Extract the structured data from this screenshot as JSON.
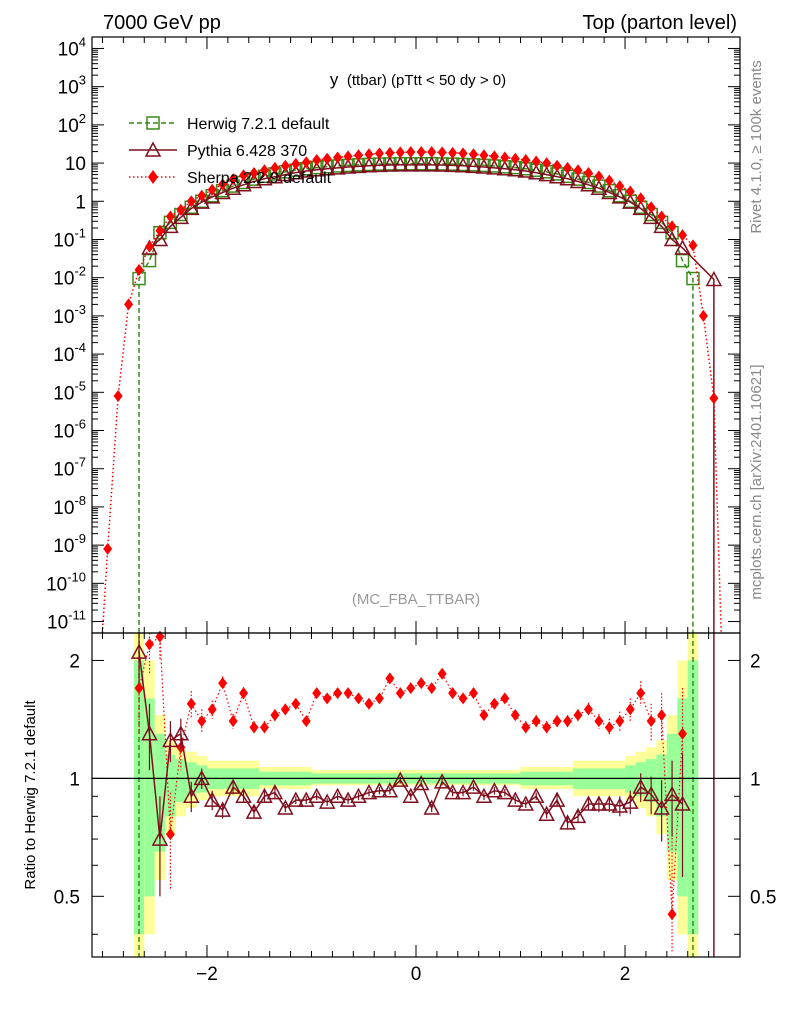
{
  "header": {
    "left": "7000 GeV pp",
    "right": "Top (parton level)"
  },
  "side_text": {
    "rivet": "Rivet 4.1.0, ≥ 100k events",
    "mcplots": "mcplots.cern.ch [arXiv:2401.10621]"
  },
  "colors": {
    "herwig": "#3a8a1a",
    "pythia": "#7f0f1e",
    "sherpa": "#ff0000",
    "band_inner": "#99ff99",
    "band_outer": "#ffff99"
  },
  "chart_data": [
    {
      "type": "line",
      "panel": "main",
      "title": "y",
      "title_suffix": "(ttbar) (pTtt < 50 dy > 0)",
      "analysis_label": "(MC_FBA_TTBAR)",
      "yscale": "log",
      "xlim": [
        -3.1,
        3.1
      ],
      "ylim_exponent": [
        -11.3,
        4.3
      ],
      "ytick_labels": [
        "10^4",
        "10^3",
        "10^2",
        "10",
        "1",
        "10^-1",
        "10^-2",
        "10^-3",
        "10^-4",
        "10^-5",
        "10^-6",
        "10^-7",
        "10^-8",
        "10^-9",
        "10^-10",
        "10^-11"
      ],
      "legend": {
        "placement": "top-left",
        "entries": [
          "Herwig 7.2.1 default",
          "Pythia 6.428 370",
          "Sherpa 2.2.9 default"
        ]
      },
      "series": [
        {
          "name": "Herwig 7.2.1 default",
          "marker": "open-square",
          "x": [
            -2.65,
            -2.55,
            -2.45,
            -2.35,
            -2.25,
            -2.15,
            -2.05,
            -1.95,
            -1.85,
            -1.75,
            -1.65,
            -1.55,
            -1.45,
            -1.35,
            -1.25,
            -1.15,
            -1.05,
            -0.95,
            -0.85,
            -0.75,
            -0.65,
            -0.55,
            -0.45,
            -0.35,
            -0.25,
            -0.15,
            -0.05,
            0.05,
            0.15,
            0.25,
            0.35,
            0.45,
            0.55,
            0.65,
            0.75,
            0.85,
            0.95,
            1.05,
            1.15,
            1.25,
            1.35,
            1.45,
            1.55,
            1.65,
            1.75,
            1.85,
            1.95,
            2.05,
            2.15,
            2.25,
            2.35,
            2.45,
            2.55,
            2.65
          ],
          "y": [
            0.0095,
            0.028,
            0.15,
            0.28,
            0.45,
            0.7,
            1.0,
            1.4,
            1.9,
            2.5,
            3.1,
            3.8,
            4.5,
            5.2,
            5.9,
            6.5,
            7.1,
            7.6,
            8.0,
            8.4,
            8.7,
            9.0,
            9.2,
            9.4,
            9.5,
            9.6,
            9.6,
            9.6,
            9.6,
            9.5,
            9.4,
            9.2,
            9.0,
            8.7,
            8.4,
            8.0,
            7.6,
            7.1,
            6.5,
            5.9,
            5.2,
            4.5,
            3.8,
            3.1,
            2.5,
            1.9,
            1.4,
            1.0,
            0.7,
            0.45,
            0.28,
            0.15,
            0.028,
            0.0095
          ]
        },
        {
          "name": "Pythia 6.428 370",
          "marker": "open-triangle",
          "x": [
            -2.55,
            -2.45,
            -2.35,
            -2.25,
            -2.15,
            -2.05,
            -1.95,
            -1.85,
            -1.75,
            -1.65,
            -1.55,
            -1.45,
            -1.35,
            -1.25,
            -1.15,
            -1.05,
            -0.95,
            -0.85,
            -0.75,
            -0.65,
            -0.55,
            -0.45,
            -0.35,
            -0.25,
            -0.15,
            -0.05,
            0.05,
            0.15,
            0.25,
            0.35,
            0.45,
            0.55,
            0.65,
            0.75,
            0.85,
            0.95,
            1.05,
            1.15,
            1.25,
            1.35,
            1.45,
            1.55,
            1.65,
            1.75,
            1.85,
            1.95,
            2.05,
            2.15,
            2.25,
            2.35,
            2.45,
            2.55,
            2.85
          ],
          "y": [
            0.06,
            0.1,
            0.22,
            0.38,
            0.65,
            0.95,
            1.3,
            1.7,
            2.2,
            2.7,
            3.3,
            3.9,
            4.4,
            5.0,
            5.6,
            6.2,
            6.7,
            7.1,
            7.5,
            7.9,
            8.2,
            8.5,
            8.7,
            8.9,
            9.0,
            9.0,
            9.0,
            9.0,
            8.9,
            8.7,
            8.5,
            8.2,
            7.9,
            7.5,
            7.1,
            6.7,
            6.2,
            5.6,
            5.0,
            4.4,
            3.9,
            3.3,
            2.7,
            2.2,
            1.7,
            1.3,
            0.95,
            0.65,
            0.38,
            0.22,
            0.1,
            0.06,
            0.009
          ]
        },
        {
          "name": "Sherpa 2.2.9 default",
          "marker": "filled-diamond",
          "x": [
            -2.95,
            -2.85,
            -2.75,
            -2.65,
            -2.55,
            -2.45,
            -2.35,
            -2.25,
            -2.15,
            -2.05,
            -1.95,
            -1.85,
            -1.75,
            -1.65,
            -1.55,
            -1.45,
            -1.35,
            -1.25,
            -1.15,
            -1.05,
            -0.95,
            -0.85,
            -0.75,
            -0.65,
            -0.55,
            -0.45,
            -0.35,
            -0.25,
            -0.15,
            -0.05,
            0.05,
            0.15,
            0.25,
            0.35,
            0.45,
            0.55,
            0.65,
            0.75,
            0.85,
            0.95,
            1.05,
            1.15,
            1.25,
            1.35,
            1.45,
            1.55,
            1.65,
            1.75,
            1.85,
            1.95,
            2.05,
            2.15,
            2.25,
            2.35,
            2.45,
            2.55,
            2.65,
            2.75,
            2.85
          ],
          "y": [
            8e-10,
            8e-06,
            0.002,
            0.016,
            0.065,
            0.17,
            0.4,
            0.6,
            1.0,
            1.4,
            2.0,
            2.8,
            3.8,
            4.8,
            5.5,
            6.5,
            7.5,
            8.5,
            9.5,
            10.5,
            12,
            13,
            14,
            15,
            16,
            17,
            18,
            18.5,
            19,
            19.5,
            19.5,
            19.5,
            19,
            18.5,
            18,
            17,
            16,
            15,
            14,
            13,
            12,
            11,
            10,
            8.5,
            7.5,
            6.5,
            5.5,
            4.5,
            3.5,
            2.5,
            1.8,
            1.2,
            0.7,
            0.4,
            0.22,
            0.13,
            0.07,
            0.001,
            7e-06
          ]
        }
      ]
    },
    {
      "type": "line",
      "panel": "ratio",
      "ylabel": "Ratio to Herwig 7.2.1 default",
      "xlim": [
        -3.1,
        3.1
      ],
      "ylim": [
        0.35,
        2.35
      ],
      "yscale": "log",
      "ytick_labels": [
        "0.5",
        "1",
        "2"
      ],
      "xtick_labels": [
        "−2",
        "0",
        "2"
      ],
      "reference_line": 1,
      "band": {
        "x_edges": [
          -2.7,
          -2.6,
          -2.5,
          -2.4,
          -2.3,
          -2.2,
          -2.1,
          -2.0,
          -1.5,
          -1.0,
          1.0,
          1.5,
          2.0,
          2.1,
          2.2,
          2.3,
          2.4,
          2.5,
          2.6,
          2.7
        ],
        "inner_low": [
          0.4,
          0.5,
          0.65,
          0.8,
          0.87,
          0.9,
          0.92,
          0.94,
          0.96,
          0.97,
          0.96,
          0.94,
          0.92,
          0.9,
          0.87,
          0.8,
          0.65,
          0.5,
          0.4
        ],
        "inner_high": [
          2.0,
          1.6,
          1.3,
          1.15,
          1.12,
          1.1,
          1.08,
          1.06,
          1.04,
          1.03,
          1.04,
          1.06,
          1.08,
          1.1,
          1.12,
          1.15,
          1.3,
          1.6,
          2.0
        ],
        "outer_low": [
          0.35,
          0.4,
          0.55,
          0.72,
          0.8,
          0.84,
          0.88,
          0.9,
          0.94,
          0.96,
          0.94,
          0.9,
          0.88,
          0.84,
          0.8,
          0.72,
          0.55,
          0.4,
          0.35
        ],
        "outer_high": [
          2.35,
          2.0,
          1.45,
          1.25,
          1.2,
          1.17,
          1.14,
          1.11,
          1.07,
          1.05,
          1.07,
          1.11,
          1.14,
          1.17,
          1.2,
          1.25,
          1.45,
          2.0,
          2.35
        ]
      },
      "series": [
        {
          "name": "Pythia 6.428 370",
          "x": [
            -2.65,
            -2.55,
            -2.45,
            -2.35,
            -2.25,
            -2.15,
            -2.05,
            -1.95,
            -1.85,
            -1.75,
            -1.65,
            -1.55,
            -1.45,
            -1.35,
            -1.25,
            -1.15,
            -1.05,
            -0.95,
            -0.85,
            -0.75,
            -0.65,
            -0.55,
            -0.45,
            -0.35,
            -0.25,
            -0.15,
            -0.05,
            0.05,
            0.15,
            0.25,
            0.35,
            0.45,
            0.55,
            0.65,
            0.75,
            0.85,
            0.95,
            1.05,
            1.15,
            1.25,
            1.35,
            1.45,
            1.55,
            1.65,
            1.75,
            1.85,
            1.95,
            2.05,
            2.15,
            2.25,
            2.35,
            2.45,
            2.55
          ],
          "y": [
            2.1,
            1.3,
            0.7,
            1.25,
            1.3,
            0.9,
            1.0,
            0.88,
            0.83,
            0.95,
            0.9,
            0.82,
            0.9,
            0.92,
            0.84,
            0.88,
            0.88,
            0.9,
            0.87,
            0.9,
            0.88,
            0.9,
            0.92,
            0.93,
            0.93,
            0.99,
            0.9,
            0.97,
            0.84,
            0.98,
            0.92,
            0.92,
            0.95,
            0.9,
            0.93,
            0.92,
            0.88,
            0.86,
            0.9,
            0.81,
            0.88,
            0.77,
            0.8,
            0.86,
            0.86,
            0.86,
            0.85,
            0.87,
            0.95,
            0.91,
            0.84,
            0.91,
            0.86
          ],
          "yerr": [
            0.35,
            0.25,
            0.2,
            0.15,
            0.12,
            0.08,
            0.06,
            0.05,
            0.04,
            0.04,
            0.03,
            0.03,
            0.03,
            0.03,
            0.02,
            0.02,
            0.02,
            0.02,
            0.02,
            0.02,
            0.02,
            0.02,
            0.02,
            0.02,
            0.02,
            0.02,
            0.02,
            0.02,
            0.02,
            0.02,
            0.02,
            0.02,
            0.02,
            0.02,
            0.02,
            0.02,
            0.02,
            0.02,
            0.02,
            0.02,
            0.03,
            0.03,
            0.03,
            0.03,
            0.04,
            0.04,
            0.05,
            0.06,
            0.08,
            0.1,
            0.15,
            0.2,
            0.3
          ]
        },
        {
          "name": "Sherpa 2.2.9 default",
          "x": [
            -2.65,
            -2.55,
            -2.45,
            -2.35,
            -2.25,
            -2.15,
            -2.05,
            -1.95,
            -1.85,
            -1.75,
            -1.65,
            -1.55,
            -1.45,
            -1.35,
            -1.25,
            -1.15,
            -1.05,
            -0.95,
            -0.85,
            -0.75,
            -0.65,
            -0.55,
            -0.45,
            -0.35,
            -0.25,
            -0.15,
            -0.05,
            0.05,
            0.15,
            0.25,
            0.35,
            0.45,
            0.55,
            0.65,
            0.75,
            0.85,
            0.95,
            1.05,
            1.15,
            1.25,
            1.35,
            1.45,
            1.55,
            1.65,
            1.75,
            1.85,
            1.95,
            2.05,
            2.15,
            2.25,
            2.35,
            2.45,
            2.55
          ],
          "y": [
            1.7,
            2.2,
            2.3,
            0.72,
            1.2,
            1.55,
            1.4,
            1.5,
            1.75,
            1.4,
            1.65,
            1.35,
            1.35,
            1.45,
            1.5,
            1.55,
            1.4,
            1.65,
            1.6,
            1.65,
            1.65,
            1.6,
            1.55,
            1.6,
            1.8,
            1.65,
            1.7,
            1.75,
            1.7,
            1.85,
            1.65,
            1.6,
            1.65,
            1.45,
            1.55,
            1.6,
            1.45,
            1.35,
            1.4,
            1.35,
            1.4,
            1.4,
            1.45,
            1.5,
            1.4,
            1.35,
            1.4,
            1.5,
            1.65,
            1.4,
            1.45,
            0.45,
            1.3
          ],
          "yerr": [
            0.4,
            0.35,
            0.3,
            0.2,
            0.15,
            0.12,
            0.1,
            0.08,
            0.07,
            0.06,
            0.06,
            0.05,
            0.05,
            0.05,
            0.05,
            0.05,
            0.04,
            0.04,
            0.04,
            0.04,
            0.04,
            0.04,
            0.04,
            0.04,
            0.04,
            0.04,
            0.04,
            0.04,
            0.04,
            0.04,
            0.04,
            0.04,
            0.04,
            0.04,
            0.04,
            0.04,
            0.04,
            0.05,
            0.05,
            0.05,
            0.05,
            0.05,
            0.05,
            0.06,
            0.06,
            0.07,
            0.08,
            0.1,
            0.12,
            0.15,
            0.2,
            0.3,
            0.4
          ]
        }
      ]
    }
  ]
}
